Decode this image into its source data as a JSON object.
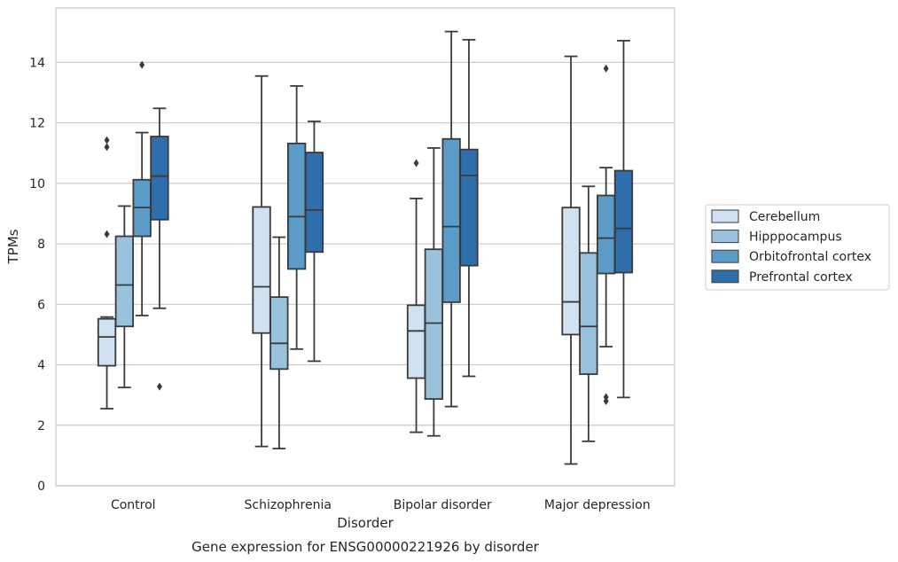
{
  "chart_data": {
    "type": "box",
    "xlabel": "Disorder",
    "ylabel": "TPMs",
    "caption": "Gene expression for ENSG00000221926 by disorder",
    "ylim": [
      0,
      15.8
    ],
    "yticks": [
      0,
      2,
      4,
      6,
      8,
      10,
      12,
      14
    ],
    "grid": "horizontal",
    "legend_placement": "right",
    "categories": [
      "Control",
      "Schizophrenia",
      "Bipolar disorder",
      "Major depression"
    ],
    "series": [
      {
        "name": "Cerebellum",
        "color": "#d0e1f2",
        "boxes": [
          {
            "whislo": 2.55,
            "q1": 3.97,
            "med": 4.92,
            "q3": 5.52,
            "whishi": 5.58,
            "fliers": [
              8.32,
              11.2,
              11.43
            ]
          },
          {
            "whislo": 1.3,
            "q1": 5.05,
            "med": 6.58,
            "q3": 9.22,
            "whishi": 13.55,
            "fliers": []
          },
          {
            "whislo": 1.77,
            "q1": 3.56,
            "med": 5.12,
            "q3": 5.97,
            "whishi": 9.5,
            "fliers": [
              10.67
            ]
          },
          {
            "whislo": 0.72,
            "q1": 5.0,
            "med": 6.08,
            "q3": 9.2,
            "whishi": 14.2,
            "fliers": []
          }
        ]
      },
      {
        "name": "Hipppocampus",
        "color": "#9ac2dc",
        "boxes": [
          {
            "whislo": 3.25,
            "q1": 5.27,
            "med": 6.64,
            "q3": 8.25,
            "whishi": 9.25,
            "fliers": []
          },
          {
            "whislo": 1.23,
            "q1": 3.86,
            "med": 4.71,
            "q3": 6.24,
            "whishi": 8.22,
            "fliers": []
          },
          {
            "whislo": 1.65,
            "q1": 2.87,
            "med": 5.38,
            "q3": 7.82,
            "whishi": 11.17,
            "fliers": []
          },
          {
            "whislo": 1.47,
            "q1": 3.69,
            "med": 5.27,
            "q3": 7.7,
            "whishi": 9.9,
            "fliers": []
          }
        ]
      },
      {
        "name": "Orbitofrontal cortex",
        "color": "#5a9bc8",
        "boxes": [
          {
            "whislo": 5.63,
            "q1": 8.25,
            "med": 9.2,
            "q3": 10.12,
            "whishi": 11.68,
            "fliers": [
              13.92
            ]
          },
          {
            "whislo": 4.52,
            "q1": 7.17,
            "med": 8.9,
            "q3": 11.32,
            "whishi": 13.22,
            "fliers": []
          },
          {
            "whislo": 2.62,
            "q1": 6.07,
            "med": 8.57,
            "q3": 11.47,
            "whishi": 15.02,
            "fliers": []
          },
          {
            "whislo": 4.6,
            "q1": 7.02,
            "med": 8.19,
            "q3": 9.6,
            "whishi": 10.52,
            "fliers": [
              2.8,
              2.93,
              13.8
            ]
          }
        ]
      },
      {
        "name": "Prefrontal cortex",
        "color": "#2d6eab",
        "boxes": [
          {
            "whislo": 5.87,
            "q1": 8.8,
            "med": 10.24,
            "q3": 11.55,
            "whishi": 12.48,
            "fliers": [
              3.28
            ]
          },
          {
            "whislo": 4.12,
            "q1": 7.73,
            "med": 9.12,
            "q3": 11.02,
            "whishi": 12.05,
            "fliers": []
          },
          {
            "whislo": 3.62,
            "q1": 7.28,
            "med": 10.26,
            "q3": 11.12,
            "whishi": 14.75,
            "fliers": []
          },
          {
            "whislo": 2.92,
            "q1": 7.05,
            "med": 8.51,
            "q3": 10.42,
            "whishi": 14.72,
            "fliers": []
          }
        ]
      }
    ]
  }
}
